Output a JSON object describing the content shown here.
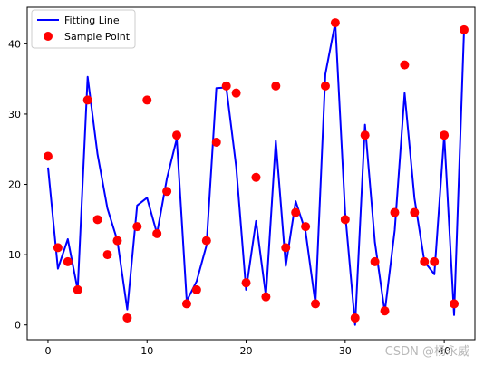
{
  "chart_data": {
    "type": "line",
    "xlim": [
      -2.1,
      43.1
    ],
    "ylim": [
      -2.1,
      45.2
    ],
    "grid": false,
    "legend_placement": "top-left",
    "xticks": [
      0,
      10,
      20,
      30,
      40
    ],
    "yticks": [
      0,
      10,
      20,
      30,
      40
    ],
    "series": [
      {
        "name": "Fitting Line",
        "kind": "line",
        "color": "#0000ff",
        "x": [
          0,
          1,
          2,
          3,
          4,
          5,
          6,
          7,
          8,
          9,
          10,
          11,
          12,
          13,
          14,
          15,
          16,
          17,
          18,
          19,
          20,
          21,
          22,
          23,
          24,
          25,
          26,
          27,
          28,
          29,
          30,
          31,
          32,
          33,
          34,
          35,
          36,
          37,
          38,
          39,
          40,
          41,
          42
        ],
        "y": [
          22.4,
          8.0,
          12.2,
          5.0,
          35.3,
          24.3,
          16.6,
          12.0,
          2.2,
          17.0,
          18.1,
          13.0,
          20.8,
          26.5,
          3.4,
          6.2,
          11.3,
          33.7,
          33.8,
          22.5,
          5.0,
          14.8,
          4.1,
          26.2,
          8.4,
          17.6,
          13.3,
          3.0,
          35.7,
          43.0,
          16.0,
          0.0,
          28.5,
          11.8,
          1.8,
          13.5,
          33.0,
          18.0,
          9.0,
          7.2,
          27.0,
          1.4,
          42.0
        ]
      },
      {
        "name": "Sample Point",
        "kind": "scatter",
        "color": "#ff0000",
        "x": [
          0,
          1,
          2,
          3,
          4,
          5,
          6,
          7,
          8,
          9,
          10,
          11,
          12,
          13,
          14,
          15,
          16,
          17,
          18,
          19,
          20,
          21,
          22,
          23,
          24,
          25,
          26,
          27,
          28,
          29,
          30,
          31,
          32,
          33,
          34,
          35,
          36,
          37,
          38,
          39,
          40,
          41,
          42
        ],
        "y": [
          24,
          11,
          9,
          5,
          32,
          15,
          10,
          12,
          1,
          14,
          32,
          13,
          19,
          27,
          3,
          5,
          12,
          26,
          34,
          33,
          6,
          21,
          4,
          34,
          11,
          16,
          14,
          3,
          34,
          43,
          15,
          1,
          27,
          9,
          2,
          16,
          37,
          16,
          9,
          9,
          27,
          3,
          42
        ]
      }
    ]
  },
  "watermark": "CSDN @杨永威"
}
